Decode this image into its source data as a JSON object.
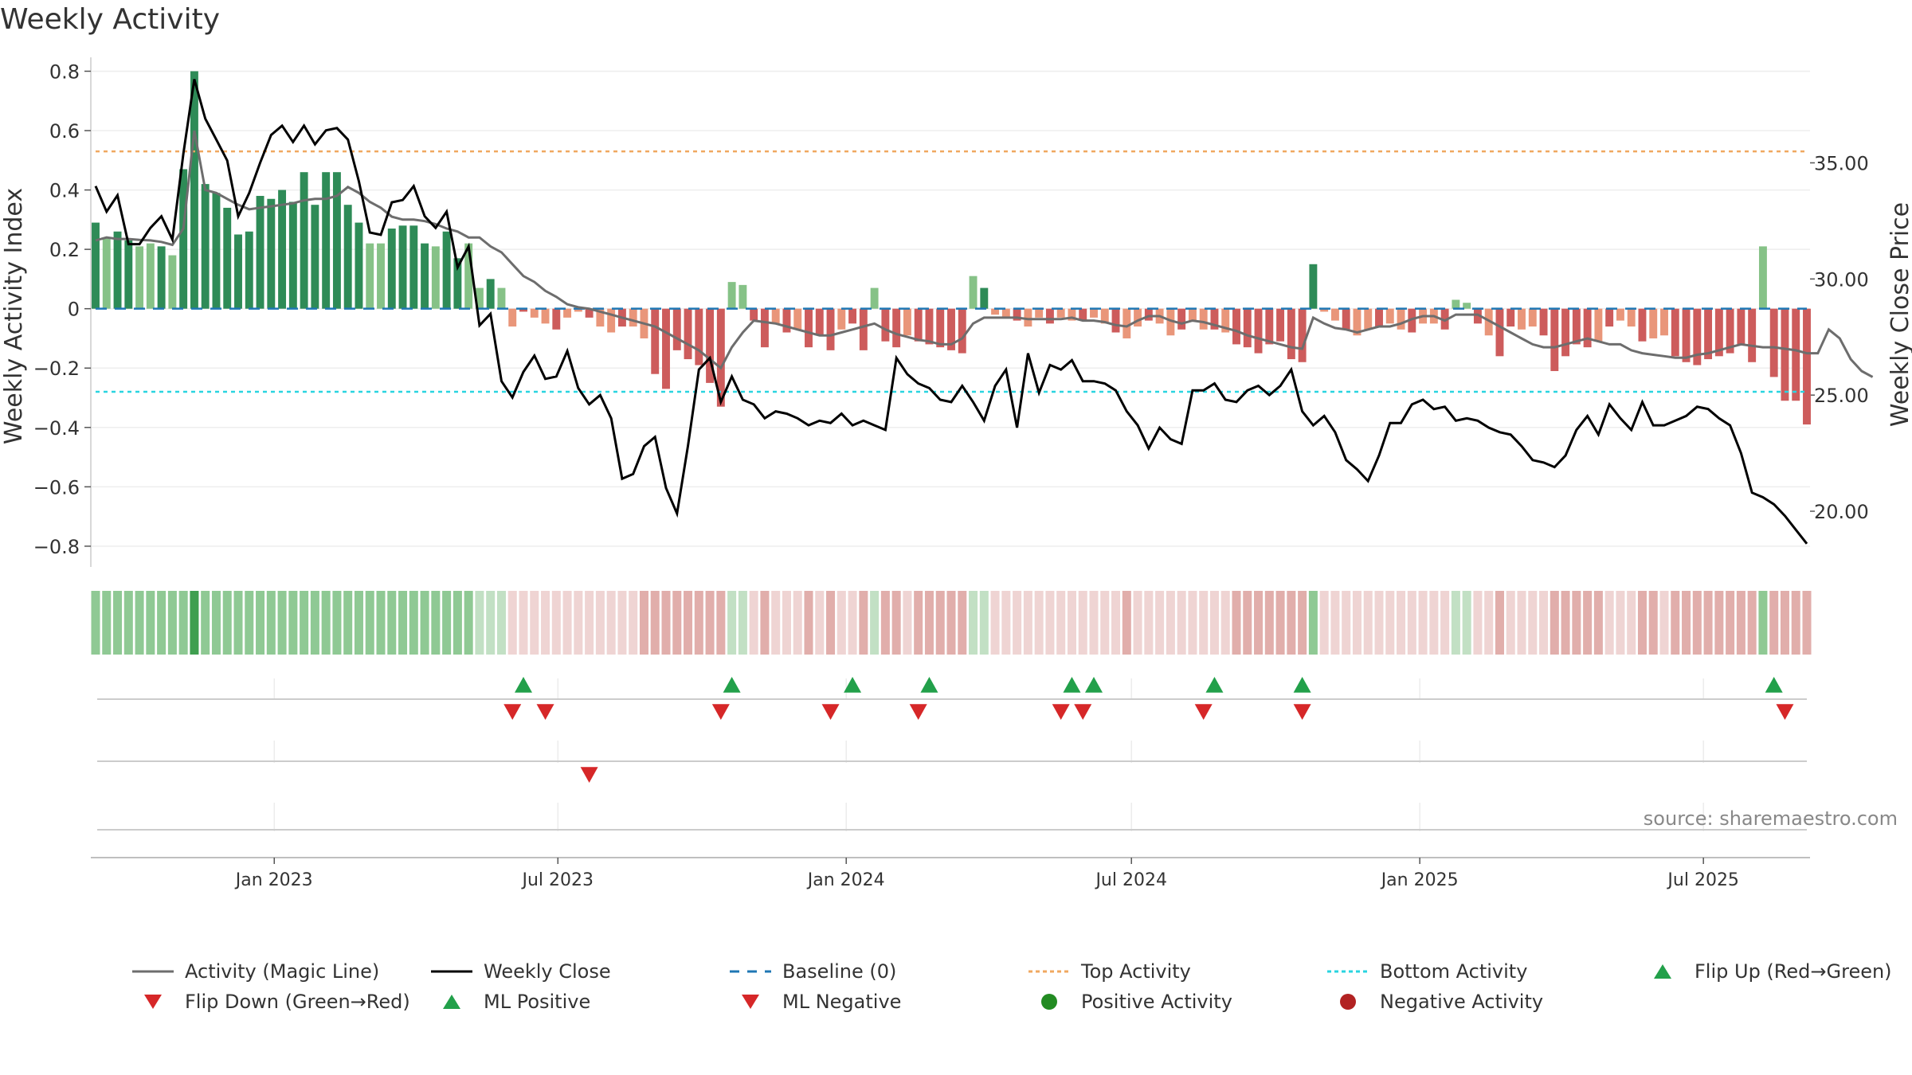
{
  "title": "Weekly Activity",
  "source": "source: sharemaestro.com",
  "legend": {
    "items": [
      {
        "key": "magic",
        "label": "Activity (Magic Line)",
        "color": "#6d6d6d"
      },
      {
        "key": "close",
        "label": "Weekly Close",
        "color": "#000000"
      },
      {
        "key": "baseline",
        "label": "Baseline (0)",
        "color": "#1f77b4"
      },
      {
        "key": "top",
        "label": "Top Activity",
        "color": "#f0a860"
      },
      {
        "key": "bottom",
        "label": "Bottom Activity",
        "color": "#2ad4e0"
      },
      {
        "key": "flipup",
        "label": "Flip Up (Red→Green)",
        "color": "#22a04a"
      },
      {
        "key": "flipdown",
        "label": "Flip Down (Green→Red)",
        "color": "#d62728"
      },
      {
        "key": "mlpos",
        "label": "ML Positive",
        "color": "#22a04a"
      },
      {
        "key": "mlneg",
        "label": "ML Negative",
        "color": "#d62728"
      },
      {
        "key": "posact",
        "label": "Positive Activity",
        "color": "#228b22"
      },
      {
        "key": "negact",
        "label": "Negative Activity",
        "color": "#b22222"
      }
    ]
  },
  "chart_data": {
    "type": "bar",
    "x_axis": {
      "start": "2022-09-09",
      "weeks": 157,
      "tick_labels": [
        "Jan 2023",
        "Jul 2023",
        "Jan 2024",
        "Jul 2024",
        "Jan 2025",
        "Jul 2025"
      ]
    },
    "left_axis": {
      "label": "Weekly Activity Index",
      "ylim": [
        -0.87,
        0.82
      ],
      "ticks": [
        0.8,
        0.6,
        0.4,
        0.2,
        0,
        -0.2,
        -0.4,
        -0.6,
        -0.8
      ],
      "tick_labels": [
        "0.8",
        "0.6",
        "0.4",
        "0.2",
        "0",
        "−0.2",
        "−0.4",
        "−0.6",
        "−0.8"
      ]
    },
    "right_axis": {
      "label": "Weekly Close Price",
      "ylim": [
        17.6,
        39.2
      ],
      "ticks": [
        35,
        30,
        25,
        20
      ],
      "tick_labels": [
        "35.00",
        "30.00",
        "25.00",
        "20.00"
      ]
    },
    "reference_lines": {
      "baseline": 0,
      "top": 0.53,
      "bottom": -0.28
    },
    "activity": [
      0.29,
      0.24,
      0.26,
      0.23,
      0.21,
      0.22,
      0.21,
      0.18,
      0.47,
      0.8,
      0.42,
      0.39,
      0.34,
      0.25,
      0.26,
      0.38,
      0.37,
      0.4,
      0.36,
      0.46,
      0.35,
      0.46,
      0.46,
      0.35,
      0.29,
      0.22,
      0.22,
      0.27,
      0.28,
      0.28,
      0.22,
      0.21,
      0.26,
      0.17,
      0.22,
      0.07,
      0.1,
      0.07,
      -0.06,
      -0.01,
      -0.03,
      -0.05,
      -0.07,
      -0.03,
      -0.01,
      -0.03,
      -0.06,
      -0.08,
      -0.06,
      -0.06,
      -0.1,
      -0.22,
      -0.27,
      -0.14,
      -0.17,
      -0.19,
      -0.25,
      -0.33,
      0.09,
      0.08,
      -0.04,
      -0.13,
      -0.05,
      -0.08,
      -0.07,
      -0.13,
      -0.09,
      -0.14,
      -0.07,
      -0.05,
      -0.14,
      0.07,
      -0.11,
      -0.13,
      -0.09,
      -0.11,
      -0.12,
      -0.13,
      -0.14,
      -0.15,
      0.11,
      0.07,
      -0.02,
      -0.03,
      -0.04,
      -0.06,
      -0.03,
      -0.05,
      -0.03,
      -0.04,
      -0.04,
      -0.03,
      -0.05,
      -0.08,
      -0.1,
      -0.06,
      -0.04,
      -0.05,
      -0.09,
      -0.07,
      -0.04,
      -0.07,
      -0.07,
      -0.08,
      -0.12,
      -0.13,
      -0.15,
      -0.12,
      -0.11,
      -0.17,
      -0.18,
      0.15,
      -0.01,
      -0.04,
      -0.07,
      -0.09,
      -0.07,
      -0.06,
      -0.05,
      -0.07,
      -0.08,
      -0.05,
      -0.05,
      -0.07,
      0.03,
      0.02,
      -0.05,
      -0.09,
      -0.16,
      -0.06,
      -0.07,
      -0.06,
      -0.09,
      -0.21,
      -0.16,
      -0.12,
      -0.13,
      -0.11,
      -0.06,
      -0.04,
      -0.06,
      -0.11,
      -0.1,
      -0.09,
      -0.16,
      -0.18,
      -0.19,
      -0.17,
      -0.16,
      -0.15,
      -0.12,
      -0.18,
      0.21,
      -0.23,
      -0.31,
      -0.31,
      -0.39
    ],
    "magic_line": [
      0.23,
      0.24,
      0.235,
      0.235,
      0.232,
      0.23,
      0.225,
      0.215,
      0.27,
      0.6,
      0.4,
      0.39,
      0.37,
      0.35,
      0.335,
      0.34,
      0.345,
      0.35,
      0.355,
      0.365,
      0.37,
      0.37,
      0.38,
      0.41,
      0.39,
      0.36,
      0.34,
      0.31,
      0.3,
      0.3,
      0.295,
      0.285,
      0.27,
      0.26,
      0.24,
      0.24,
      0.21,
      0.19,
      0.15,
      0.11,
      0.09,
      0.06,
      0.04,
      0.015,
      0.005,
      0,
      -0.01,
      -0.02,
      -0.03,
      -0.04,
      -0.05,
      -0.06,
      -0.08,
      -0.1,
      -0.12,
      -0.14,
      -0.17,
      -0.2,
      -0.13,
      -0.08,
      -0.04,
      -0.045,
      -0.05,
      -0.06,
      -0.07,
      -0.08,
      -0.09,
      -0.09,
      -0.08,
      -0.07,
      -0.06,
      -0.05,
      -0.07,
      -0.085,
      -0.095,
      -0.105,
      -0.11,
      -0.12,
      -0.12,
      -0.1,
      -0.05,
      -0.03,
      -0.03,
      -0.03,
      -0.03,
      -0.035,
      -0.035,
      -0.035,
      -0.035,
      -0.03,
      -0.04,
      -0.04,
      -0.045,
      -0.055,
      -0.06,
      -0.04,
      -0.025,
      -0.025,
      -0.04,
      -0.05,
      -0.04,
      -0.045,
      -0.055,
      -0.065,
      -0.075,
      -0.09,
      -0.1,
      -0.11,
      -0.12,
      -0.13,
      -0.135,
      -0.03,
      -0.05,
      -0.065,
      -0.07,
      -0.08,
      -0.07,
      -0.06,
      -0.06,
      -0.05,
      -0.035,
      -0.025,
      -0.025,
      -0.04,
      -0.02,
      -0.02,
      -0.02,
      -0.04,
      -0.06,
      -0.08,
      -0.1,
      -0.12,
      -0.13,
      -0.13,
      -0.12,
      -0.11,
      -0.1,
      -0.11,
      -0.12,
      -0.12,
      -0.14,
      -0.15,
      -0.155,
      -0.16,
      -0.165,
      -0.165,
      -0.155,
      -0.15,
      -0.14,
      -0.13,
      -0.12,
      -0.125,
      -0.13,
      -0.13,
      -0.135,
      -0.14,
      -0.15,
      -0.15,
      -0.07,
      -0.1,
      -0.17,
      -0.21,
      -0.23
    ],
    "close": [
      34.0,
      32.9,
      33.6,
      31.5,
      31.5,
      32.2,
      32.7,
      31.7,
      35.4,
      38.6,
      36.9,
      36.0,
      35.1,
      32.7,
      33.7,
      35.0,
      36.2,
      36.6,
      35.9,
      36.6,
      35.8,
      36.4,
      36.5,
      36.0,
      34.2,
      32.0,
      31.9,
      33.3,
      33.4,
      34.0,
      32.7,
      32.2,
      32.9,
      30.5,
      31.4,
      28.0,
      28.5,
      25.6,
      24.9,
      26.0,
      26.7,
      25.7,
      25.8,
      26.9,
      25.3,
      24.6,
      25.0,
      24.0,
      21.4,
      21.6,
      22.8,
      23.2,
      21.0,
      19.9,
      22.8,
      26.1,
      26.6,
      24.7,
      25.8,
      24.8,
      24.6,
      24.0,
      24.3,
      24.2,
      24.0,
      23.7,
      23.9,
      23.8,
      24.2,
      23.7,
      23.9,
      23.7,
      23.5,
      26.6,
      25.9,
      25.5,
      25.3,
      24.8,
      24.7,
      25.4,
      24.7,
      23.9,
      25.4,
      26.1,
      23.6,
      26.8,
      25.1,
      26.3,
      26.1,
      26.5,
      25.6,
      25.6,
      25.5,
      25.2,
      24.3,
      23.7,
      22.7,
      23.6,
      23.1,
      22.9,
      25.2,
      25.2,
      25.5,
      24.8,
      24.7,
      25.2,
      25.4,
      25.0,
      25.4,
      26.1,
      24.3,
      23.7,
      24.1,
      23.4,
      22.2,
      21.8,
      21.3,
      22.4,
      23.8,
      23.8,
      24.6,
      24.8,
      24.4,
      24.5,
      23.9,
      24.0,
      23.9,
      23.6,
      23.4,
      23.3,
      22.8,
      22.2,
      22.1,
      21.9,
      22.4,
      23.5,
      24.1,
      23.3,
      24.6,
      24.0,
      23.5,
      24.7,
      23.7,
      23.7,
      23.9,
      24.1,
      24.5,
      24.4,
      24.0,
      23.7,
      22.5,
      20.8,
      20.6,
      20.3,
      19.8,
      19.2,
      18.6
    ],
    "flip_up_weeks": [
      39,
      58,
      69,
      76,
      89,
      91,
      102,
      110,
      153
    ],
    "flip_down_weeks": [
      38,
      41,
      57,
      67,
      75,
      88,
      90,
      101,
      110,
      154
    ],
    "ml_negative_weeks": [
      45
    ]
  }
}
